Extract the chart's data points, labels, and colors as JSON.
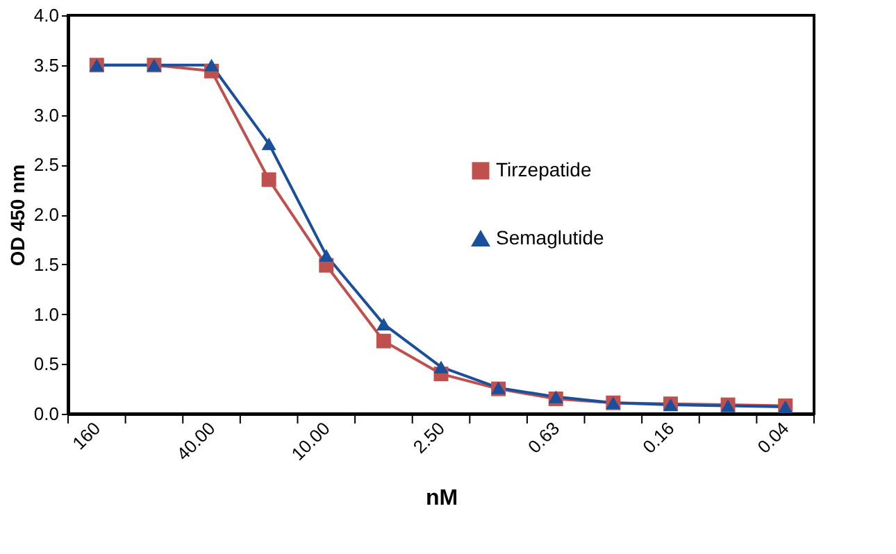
{
  "chart_data": {
    "type": "line",
    "categories": [
      "160",
      null,
      "40.00",
      null,
      "10.00",
      null,
      "2.50",
      null,
      "0.63",
      null,
      "0.16",
      null,
      "0.04"
    ],
    "series": [
      {
        "name": "Tirzepatide",
        "color": "#c0504d",
        "marker": "square",
        "values": [
          3.5,
          3.5,
          3.44,
          2.35,
          1.49,
          0.73,
          0.4,
          0.25,
          0.15,
          0.11,
          0.1,
          0.09,
          0.08
        ]
      },
      {
        "name": "Semaglutide",
        "color": "#1a4f9c",
        "marker": "triangle",
        "values": [
          3.5,
          3.5,
          3.5,
          2.71,
          1.59,
          0.9,
          0.47,
          0.26,
          0.17,
          0.11,
          0.09,
          0.08,
          0.07
        ]
      }
    ],
    "xlabel": "nM",
    "ylabel": "OD  450 nm",
    "ylim": [
      0,
      4
    ],
    "yticks": [
      {
        "value": 0,
        "label": "0.0"
      },
      0.5,
      {
        "value": 1,
        "label": "1.0"
      },
      1.5,
      {
        "value": 2,
        "label": "2.0"
      },
      2.5,
      {
        "value": 3,
        "label": "3.0"
      },
      3.5,
      {
        "value": 4,
        "label": "4.0"
      }
    ],
    "grid": false,
    "legend": "center",
    "line_style": "solid"
  }
}
